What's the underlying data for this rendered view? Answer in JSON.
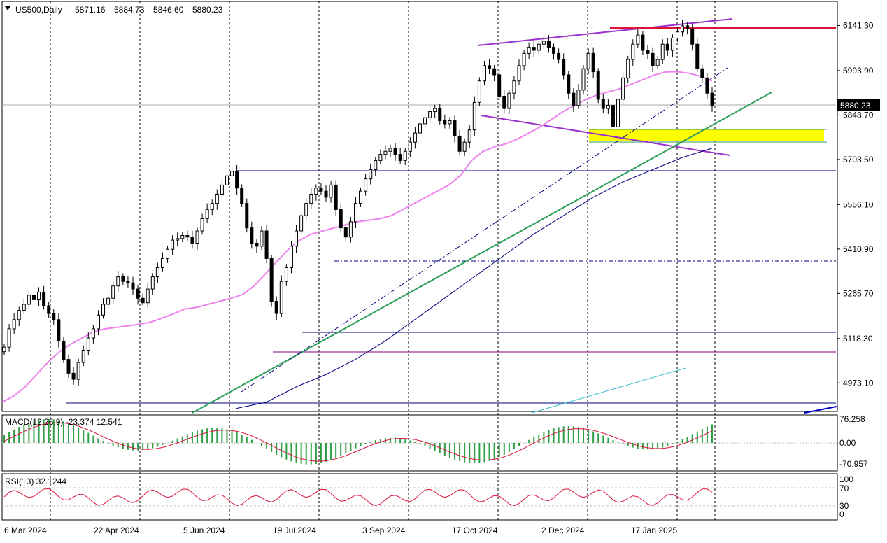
{
  "header": {
    "symbol": "US500,Daily",
    "open": "5871.16",
    "high": "5884.73",
    "low": "5846.60",
    "close": "5880.23"
  },
  "colors": {
    "bull": "#000000",
    "bear": "#000000",
    "ma_fast": "#ee82ee",
    "ma_slow": "#000080",
    "trend_green": "#2e9e5b",
    "channel": "#9932cc",
    "resistance": "#dc143c",
    "support_zone": "#ffff00",
    "macd_hist": "#2ea043",
    "macd_signal": "#dc143c",
    "rsi": "#dc143c"
  },
  "chart_data": [
    {
      "type": "candlestick",
      "name": "main",
      "ylim": [
        4880,
        6220
      ],
      "price_ticks": [
        "6141.30",
        "5993.90",
        "5848.70",
        "5703.50",
        "5556.10",
        "5410.90",
        "5265.70",
        "5118.30",
        "4973.10"
      ],
      "current_price_label": "5880.23",
      "date_labels": [
        "6 Mar 2024",
        "22 Apr 2024",
        "5 Jun 2024",
        "19 Jul 2024",
        "3 Sep 2024",
        "17 Oct 2024",
        "2 Dec 2024",
        "17 Jan 2025"
      ],
      "series_close": [
        5090,
        5150,
        5180,
        5210,
        5230,
        5260,
        5245,
        5270,
        5225,
        5200,
        5180,
        5110,
        5050,
        5005,
        4985,
        5040,
        5080,
        5120,
        5150,
        5195,
        5230,
        5250,
        5290,
        5320,
        5305,
        5300,
        5280,
        5250,
        5235,
        5280,
        5320,
        5350,
        5380,
        5410,
        5440,
        5445,
        5455,
        5450,
        5430,
        5470,
        5510,
        5540,
        5560,
        5590,
        5620,
        5650,
        5665,
        5610,
        5560,
        5480,
        5430,
        5420,
        5470,
        5380,
        5240,
        5200,
        5305,
        5350,
        5420,
        5470,
        5520,
        5560,
        5590,
        5610,
        5600,
        5580,
        5620,
        5540,
        5480,
        5450,
        5500,
        5560,
        5600,
        5640,
        5670,
        5700,
        5720,
        5730,
        5740,
        5720,
        5700,
        5730,
        5760,
        5790,
        5820,
        5840,
        5860,
        5870,
        5830,
        5820,
        5830,
        5780,
        5730,
        5760,
        5800,
        5890,
        5960,
        6010,
        6000,
        5980,
        5910,
        5870,
        5920,
        5960,
        6010,
        6050,
        6070,
        6060,
        6080,
        6090,
        6070,
        6050,
        6030,
        5980,
        5920,
        5880,
        5930,
        6000,
        6050,
        5990,
        5900,
        5870,
        5880,
        5810,
        5900,
        5970,
        6030,
        6080,
        6110,
        6060,
        6050,
        6010,
        6030,
        6080,
        6060,
        6100,
        6120,
        6140,
        6130,
        6080,
        6000,
        5970,
        5920,
        5880
      ],
      "ma_fast": [
        4910,
        4930,
        4960,
        5000,
        5040,
        5075,
        5100,
        5120,
        5140,
        5150,
        5155,
        5160,
        5165,
        5172,
        5185,
        5200,
        5215,
        5220,
        5230,
        5240,
        5250,
        5262,
        5290,
        5330,
        5370,
        5410,
        5440,
        5460,
        5470,
        5480,
        5490,
        5500,
        5505,
        5510,
        5520,
        5540,
        5560,
        5580,
        5600,
        5620,
        5650,
        5700,
        5730,
        5745,
        5755,
        5770,
        5790,
        5810,
        5835,
        5860,
        5880,
        5900,
        5915,
        5925,
        5935,
        5950,
        5965,
        5980,
        5990,
        5990,
        5985,
        5975,
        5960
      ],
      "ma_slow": [
        4890,
        4910,
        4960,
        5000,
        5050,
        5110,
        5180,
        5250,
        5320,
        5390,
        5460,
        5520,
        5580,
        5630,
        5670,
        5710,
        5740
      ],
      "macd": {
        "label": "MACD(12,26,9) -23.374 12.541",
        "ticks": [
          "76.258",
          "0.00",
          "-70.957"
        ],
        "ylim": [
          -90,
          90
        ]
      },
      "rsi": {
        "label": "RSI(13) 32.1244",
        "ticks": [
          "100",
          "70",
          "30",
          "0"
        ],
        "ylim": [
          0,
          100
        ]
      }
    }
  ]
}
